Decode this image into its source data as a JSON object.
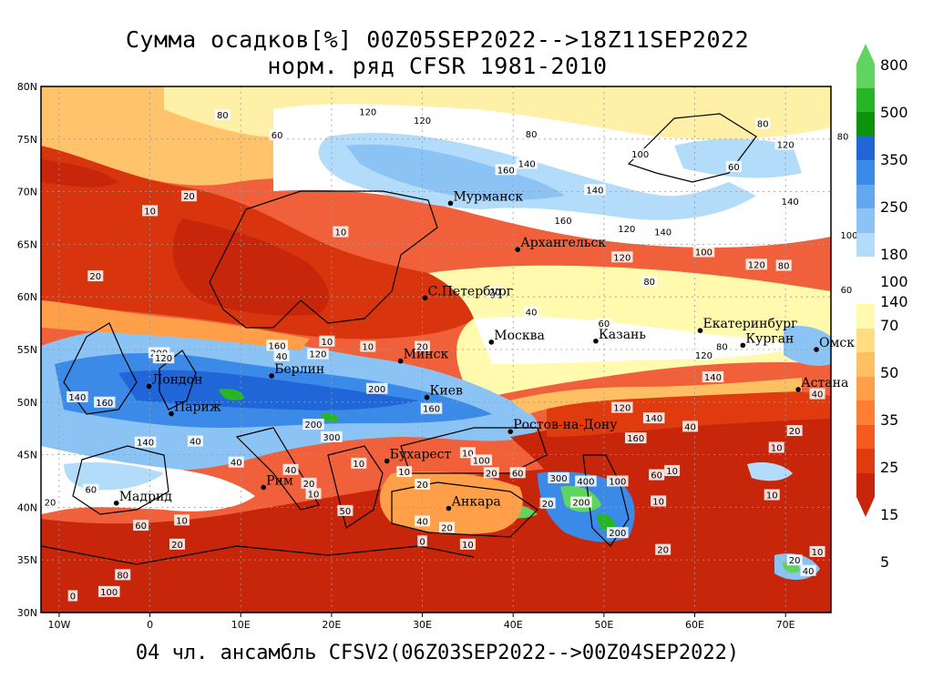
{
  "title": {
    "line1": "Сумма осадков[%] 00Z05SEP2022-->18Z11SEP2022",
    "line2": "норм. ряд CFSR 1981-2010"
  },
  "footer": "04 чл. ансамбль CFSV2(06Z03SEP2022-->00Z04SEP2022)",
  "map": {
    "lon_range": [
      -12,
      75
    ],
    "lat_range": [
      30,
      80
    ],
    "lon_ticks": [
      {
        "value": -10,
        "label": "10W"
      },
      {
        "value": 0,
        "label": "0"
      },
      {
        "value": 10,
        "label": "10E"
      },
      {
        "value": 20,
        "label": "20E"
      },
      {
        "value": 30,
        "label": "30E"
      },
      {
        "value": 40,
        "label": "40E"
      },
      {
        "value": 50,
        "label": "50E"
      },
      {
        "value": 60,
        "label": "60E"
      },
      {
        "value": 70,
        "label": "70E"
      }
    ],
    "lat_ticks": [
      {
        "value": 30,
        "label": "30N"
      },
      {
        "value": 35,
        "label": "35N"
      },
      {
        "value": 40,
        "label": "40N"
      },
      {
        "value": 45,
        "label": "45N"
      },
      {
        "value": 50,
        "label": "50N"
      },
      {
        "value": 55,
        "label": "55N"
      },
      {
        "value": 60,
        "label": "60N"
      },
      {
        "value": 65,
        "label": "65N"
      },
      {
        "value": 70,
        "label": "70N"
      },
      {
        "value": 75,
        "label": "75N"
      },
      {
        "value": 80,
        "label": "80N"
      }
    ],
    "cities": [
      {
        "name": "Мурманск",
        "lon": 33.1,
        "lat": 68.9
      },
      {
        "name": "Архангельск",
        "lon": 40.5,
        "lat": 64.5
      },
      {
        "name": "С.Петербург",
        "lon": 30.3,
        "lat": 59.9
      },
      {
        "name": "Москва",
        "lon": 37.6,
        "lat": 55.7
      },
      {
        "name": "Казань",
        "lon": 49.1,
        "lat": 55.8
      },
      {
        "name": "Екатеринбург",
        "lon": 60.6,
        "lat": 56.8
      },
      {
        "name": "Курган",
        "lon": 65.3,
        "lat": 55.4
      },
      {
        "name": "Омск",
        "lon": 73.4,
        "lat": 55.0
      },
      {
        "name": "Астана",
        "lon": 71.4,
        "lat": 51.2
      },
      {
        "name": "Минск",
        "lon": 27.6,
        "lat": 53.9
      },
      {
        "name": "Берлин",
        "lon": 13.4,
        "lat": 52.5
      },
      {
        "name": "Лондон",
        "lon": -0.1,
        "lat": 51.5
      },
      {
        "name": "Париж",
        "lon": 2.35,
        "lat": 48.9
      },
      {
        "name": "Киев",
        "lon": 30.5,
        "lat": 50.45
      },
      {
        "name": "Ростов-на-Дону",
        "lon": 39.7,
        "lat": 47.2
      },
      {
        "name": "Бухарест",
        "lon": 26.1,
        "lat": 44.4
      },
      {
        "name": "Рим",
        "lon": 12.5,
        "lat": 41.9
      },
      {
        "name": "Мадрид",
        "lon": -3.7,
        "lat": 40.4
      },
      {
        "name": "Анкара",
        "lon": 32.9,
        "lat": 39.9
      }
    ],
    "contour_labels": [
      {
        "text": "80",
        "lon": 8,
        "lat": 77.3
      },
      {
        "text": "120",
        "lon": 24,
        "lat": 77.6
      },
      {
        "text": "60",
        "lon": 14,
        "lat": 75.4
      },
      {
        "text": "120",
        "lon": 30,
        "lat": 76.8
      },
      {
        "text": "80",
        "lon": 42,
        "lat": 75.5
      },
      {
        "text": "100",
        "lon": 54,
        "lat": 73.6
      },
      {
        "text": "140",
        "lon": 41.5,
        "lat": 72.7
      },
      {
        "text": "160",
        "lon": 39.2,
        "lat": 72.1
      },
      {
        "text": "140",
        "lon": 49,
        "lat": 70.2
      },
      {
        "text": "80",
        "lon": 67.5,
        "lat": 76.5
      },
      {
        "text": "120",
        "lon": 70,
        "lat": 74.5
      },
      {
        "text": "80",
        "lon": 76.3,
        "lat": 75.3
      },
      {
        "text": "60",
        "lon": 64.3,
        "lat": 72.4
      },
      {
        "text": "140",
        "lon": 70.5,
        "lat": 69.1
      },
      {
        "text": "120",
        "lon": 52.5,
        "lat": 66.5
      },
      {
        "text": "140",
        "lon": 56.5,
        "lat": 66.2
      },
      {
        "text": "100",
        "lon": 61,
        "lat": 64.3
      },
      {
        "text": "120",
        "lon": 66.8,
        "lat": 63.1
      },
      {
        "text": "100",
        "lon": 77,
        "lat": 65.9
      },
      {
        "text": "80",
        "lon": 69.8,
        "lat": 63
      },
      {
        "text": "60",
        "lon": 76.7,
        "lat": 60.7
      },
      {
        "text": "80",
        "lon": 55,
        "lat": 61.5
      },
      {
        "text": "120",
        "lon": 52,
        "lat": 63.8
      },
      {
        "text": "160",
        "lon": 45.5,
        "lat": 67.3
      },
      {
        "text": "20",
        "lon": 4.3,
        "lat": 69.6
      },
      {
        "text": "10",
        "lon": 0,
        "lat": 68.2
      },
      {
        "text": "20",
        "lon": -6,
        "lat": 62
      },
      {
        "text": "10",
        "lon": 21,
        "lat": 66.2
      },
      {
        "text": "20",
        "lon": 38,
        "lat": 60.5
      },
      {
        "text": "40",
        "lon": 42,
        "lat": 58.6
      },
      {
        "text": "60",
        "lon": 50,
        "lat": 57.5
      },
      {
        "text": "80",
        "lon": 63,
        "lat": 55.3
      },
      {
        "text": "120",
        "lon": 61,
        "lat": 54.5
      },
      {
        "text": "160",
        "lon": 14,
        "lat": 55.4
      },
      {
        "text": "10",
        "lon": 24,
        "lat": 55.3
      },
      {
        "text": "20",
        "lon": 30,
        "lat": 55.3
      },
      {
        "text": "200",
        "lon": 1,
        "lat": 54.7
      },
      {
        "text": "160",
        "lon": -5,
        "lat": 50
      },
      {
        "text": "140",
        "lon": -8,
        "lat": 50.5
      },
      {
        "text": "200",
        "lon": 25,
        "lat": 51.3
      },
      {
        "text": "160",
        "lon": 31,
        "lat": 49.4
      },
      {
        "text": "200",
        "lon": 18,
        "lat": 47.9
      },
      {
        "text": "300",
        "lon": 20,
        "lat": 46.7
      },
      {
        "text": "120",
        "lon": 52,
        "lat": 49.5
      },
      {
        "text": "140",
        "lon": 55.5,
        "lat": 48.5
      },
      {
        "text": "140",
        "lon": 62,
        "lat": 52.4
      },
      {
        "text": "40",
        "lon": 73.5,
        "lat": 50.8
      },
      {
        "text": "20",
        "lon": 71,
        "lat": 47.3
      },
      {
        "text": "10",
        "lon": 69,
        "lat": 45.7
      },
      {
        "text": "10",
        "lon": 35,
        "lat": 45.2
      },
      {
        "text": "20",
        "lon": 37.6,
        "lat": 43.3
      },
      {
        "text": "60",
        "lon": 40.5,
        "lat": 43.3
      },
      {
        "text": "300",
        "lon": 45,
        "lat": 42.8
      },
      {
        "text": "400",
        "lon": 48,
        "lat": 42.5
      },
      {
        "text": "100",
        "lon": 51.5,
        "lat": 42.5
      },
      {
        "text": "200",
        "lon": 47.5,
        "lat": 40.5
      },
      {
        "text": "200",
        "lon": 51.5,
        "lat": 37.6
      },
      {
        "text": "40",
        "lon": 30,
        "lat": 38.7
      },
      {
        "text": "20",
        "lon": 32.7,
        "lat": 38.1
      },
      {
        "text": "10",
        "lon": 35,
        "lat": 36.5
      },
      {
        "text": "0",
        "lon": 30,
        "lat": 36.8
      },
      {
        "text": "10",
        "lon": 57.5,
        "lat": 43.5
      },
      {
        "text": "100",
        "lon": 36.5,
        "lat": 44.5
      },
      {
        "text": "20",
        "lon": -11,
        "lat": 40.5
      },
      {
        "text": "60",
        "lon": -6.5,
        "lat": 41.7
      },
      {
        "text": "10",
        "lon": 3.5,
        "lat": 38.8
      },
      {
        "text": "20",
        "lon": 3,
        "lat": 36.5
      },
      {
        "text": "60",
        "lon": -1,
        "lat": 38.3
      },
      {
        "text": "80",
        "lon": -3,
        "lat": 33.6
      },
      {
        "text": "100",
        "lon": -4.5,
        "lat": 32
      },
      {
        "text": "0",
        "lon": -8.5,
        "lat": 31.6
      },
      {
        "text": "40",
        "lon": 9.5,
        "lat": 44.3
      },
      {
        "text": "40",
        "lon": 15.5,
        "lat": 43.6
      },
      {
        "text": "20",
        "lon": 17.5,
        "lat": 42.3
      },
      {
        "text": "10",
        "lon": 18,
        "lat": 41.3
      },
      {
        "text": "50",
        "lon": 21.5,
        "lat": 39.7
      },
      {
        "text": "10",
        "lon": 23,
        "lat": 44.2
      },
      {
        "text": "10",
        "lon": 28,
        "lat": 43.4
      },
      {
        "text": "20",
        "lon": 30,
        "lat": 42.2
      },
      {
        "text": "20",
        "lon": 43.8,
        "lat": 40.4
      },
      {
        "text": "10",
        "lon": 56,
        "lat": 40.6
      },
      {
        "text": "20",
        "lon": 56.5,
        "lat": 36
      },
      {
        "text": "20",
        "lon": 71,
        "lat": 35
      },
      {
        "text": "10",
        "lon": 73.5,
        "lat": 35.8
      },
      {
        "text": "40",
        "lon": 72.5,
        "lat": 34
      },
      {
        "text": "60",
        "lon": 55.8,
        "lat": 43.1
      },
      {
        "text": "40",
        "lon": 59.5,
        "lat": 47.7
      },
      {
        "text": "160",
        "lon": 53.5,
        "lat": 46.6
      },
      {
        "text": "10",
        "lon": 68.5,
        "lat": 41.2
      },
      {
        "text": "40",
        "lon": 5,
        "lat": 46.3
      },
      {
        "text": "140",
        "lon": -0.5,
        "lat": 46.2
      },
      {
        "text": "120",
        "lon": 1.5,
        "lat": 54.2
      },
      {
        "text": "10",
        "lon": 19.5,
        "lat": 55.8
      },
      {
        "text": "120",
        "lon": 18.5,
        "lat": 54.6
      },
      {
        "text": "40",
        "lon": 14.5,
        "lat": 54.4
      }
    ]
  },
  "colorbar": {
    "top_labels": [
      "800",
      "500",
      "350",
      "250",
      "180",
      "140"
    ],
    "mid_label": "100",
    "bottom_labels": [
      "70",
      "50",
      "35",
      "25",
      "15",
      "5"
    ],
    "upper_colors": [
      "#5fd45f",
      "#27b527",
      "#0d920d",
      "#2166d9",
      "#3c8ae8",
      "#63a7f0",
      "#8cc3f5",
      "#b3dcfa"
    ],
    "lower_colors": [
      "#fffaae",
      "#ffdd80",
      "#ffc063",
      "#ff9f4a",
      "#ff7e33",
      "#f55a1e",
      "#e03a0f",
      "#c8260a"
    ]
  }
}
